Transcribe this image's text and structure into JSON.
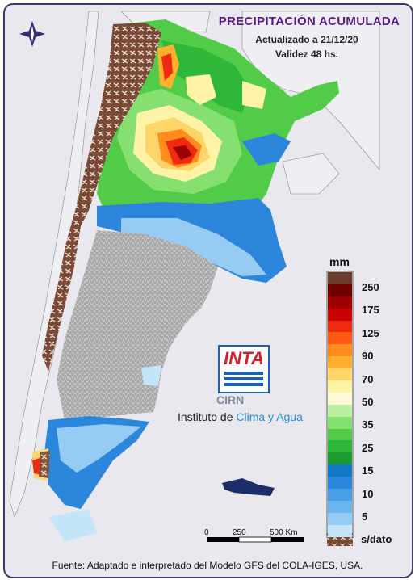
{
  "header": {
    "title": "PRECIPITACIÓN ACUMULADA",
    "updated": "Actualizado a 21/12/20",
    "validity": "Validez 48 hs."
  },
  "legend": {
    "unit": "mm",
    "labels": [
      "250",
      "175",
      "125",
      "90",
      "70",
      "50",
      "35",
      "25",
      "15",
      "10",
      "5"
    ],
    "colors": [
      "#6b3a2a",
      "#6e0000",
      "#9c0000",
      "#c80000",
      "#ee2a10",
      "#ff5a14",
      "#ff8c1c",
      "#ffb02e",
      "#ffd56a",
      "#fff3a8",
      "#fffad6",
      "#b8f0a0",
      "#86e070",
      "#52cc48",
      "#2fb838",
      "#1d9a30",
      "#1478c8",
      "#2b86dc",
      "#4a9ee8",
      "#6cb6f0",
      "#96ccf4",
      "#c4e4f8"
    ],
    "no_data_label": "s/dato"
  },
  "logo": {
    "inta": "INTA",
    "cirn": "CIRN",
    "institute_prefix": "Instituto de",
    "institute_suffix": "Clima y Agua"
  },
  "scale": {
    "marks": [
      "0",
      "250",
      "500 Km"
    ]
  },
  "footer": {
    "source": "Fuente: Adaptado e interpretado del Modelo GFS del COLA-IGES, USA."
  },
  "compass": {
    "icon": "compass-rose-icon"
  }
}
